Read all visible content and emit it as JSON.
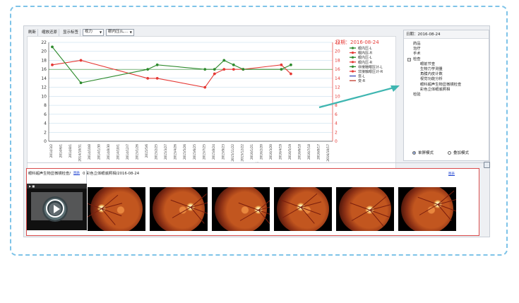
{
  "toolbar": {
    "refresh": "刷新",
    "zoom_reset": "缩放还原",
    "show_labels": "显示标签",
    "select_vision": "视力",
    "select_pressure": "眼内压(L,..."
  },
  "chart_data": {
    "type": "line",
    "title": "",
    "annotation": "日期：2016-08-24",
    "ylim": [
      0,
      22
    ],
    "y_ticks": [
      0,
      2,
      4,
      6,
      8,
      10,
      12,
      14,
      16,
      18,
      20,
      22
    ],
    "right_ylim": [
      0,
      22
    ],
    "x_ticks": [
      "2014/3/2",
      "2014/6/1",
      "2014/8/1",
      "2014/10/31",
      "2014/10/8",
      "2014/1/30",
      "2014/8/30",
      "2014/10/1",
      "2014/12/7",
      "2015/1/26",
      "2015/5/6",
      "2015/2/25",
      "2015/3/27",
      "2015/4/26",
      "2015/5/26",
      "2015/6/25",
      "2015/7/25",
      "2015/8/24",
      "2015/9/23",
      "2015/11/22",
      "2015/12/22",
      "2016/1/21",
      "2016/2/20",
      "2016/3/20",
      "2016/4/19",
      "2016/5/19",
      "2016/6/18",
      "2016/7/18",
      "2016/8/17",
      "2016/10/17"
    ],
    "series": [
      {
        "name": "眼内压-R",
        "color": "#e53935",
        "values": [
          [
            0,
            17
          ],
          [
            3,
            18
          ],
          [
            10,
            14
          ],
          [
            11,
            14
          ],
          [
            16,
            12
          ],
          [
            17,
            15
          ],
          [
            18,
            16
          ],
          [
            19,
            16
          ],
          [
            20,
            16
          ],
          [
            24,
            17
          ],
          [
            25,
            15
          ]
        ]
      },
      {
        "name": "眼内压-L",
        "color": "#2e8b2e",
        "values": [
          [
            0,
            21
          ],
          [
            3,
            13
          ],
          [
            10,
            16
          ],
          [
            11,
            17
          ],
          [
            16,
            16
          ],
          [
            17,
            16
          ],
          [
            18,
            18
          ],
          [
            19,
            17
          ],
          [
            20,
            16
          ],
          [
            24,
            16
          ],
          [
            25,
            17
          ]
        ]
      }
    ],
    "legend": [
      "眼内压-L",
      "眼内压-R",
      "眼内压-L",
      "眼内压-R",
      "非接触眼压计-L",
      "非接触眼压计-R",
      "变-L",
      "变-R"
    ],
    "legend_colors": [
      "#2e8b2e",
      "#e53935",
      "#2e8b2e",
      "#e53935",
      "#2e8b2e",
      "#e53935",
      "#3b4bb8",
      "#c0392b"
    ],
    "legend_position": "top-right",
    "grid": true
  },
  "right_panel": {
    "date_label": "日期：2016-08-24",
    "tree": [
      {
        "label": "药品",
        "level": 1
      },
      {
        "label": "治疗",
        "level": 1
      },
      {
        "label": "手术",
        "level": 1
      },
      {
        "label": "检查",
        "level": 1,
        "expanded": true
      },
      {
        "label": "眼前节查",
        "level": 2
      },
      {
        "label": "生物力学测量",
        "level": 2
      },
      {
        "label": "角膜内皮计数",
        "level": 2
      },
      {
        "label": "视觉功能分析",
        "level": 2
      },
      {
        "label": "眼科超声生物显微镜检查",
        "level": 2
      },
      {
        "label": "彩色立体眼底照相",
        "level": 2
      },
      {
        "label": "检验",
        "level": 1
      }
    ],
    "mode_single": "单屏模式",
    "mode_overlay": "叠加模式"
  },
  "images": {
    "left_title": "眼科超声生物显微镜检查/",
    "left_link": "图表",
    "right_title": "0 彩色立体眼底照相/2016-08-24",
    "right_link": "图表",
    "video_caption": "▶ ■"
  }
}
